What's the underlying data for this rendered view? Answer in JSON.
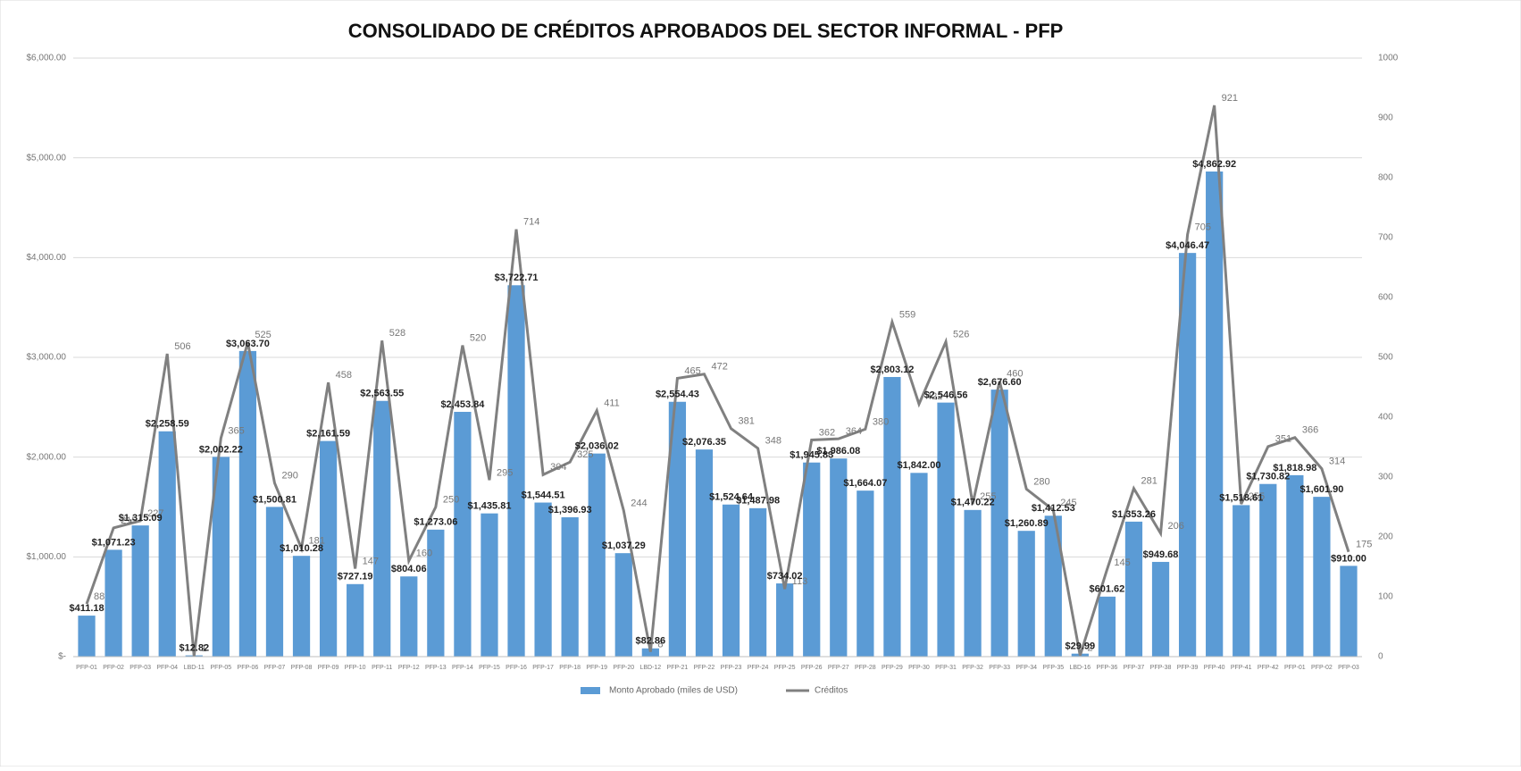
{
  "chart_data": {
    "type": "bar_line",
    "title": "CONSOLIDADO DE CRÉDITOS APROBADOS DEL SECTOR INFORMAL - PFP",
    "categories": [
      "PFP-01",
      "PFP-02",
      "PFP-03",
      "PFP-04",
      "LBD-11",
      "PFP-05",
      "PFP-06",
      "PFP-07",
      "PFP-08",
      "PFP-09",
      "PFP-10",
      "PFP-11",
      "PFP-12",
      "PFP-13",
      "PFP-14",
      "PFP-15",
      "PFP-16",
      "PFP-17",
      "PFP-18",
      "PFP-19",
      "PFP-20",
      "LBD-12",
      "PFP-21",
      "PFP-22",
      "PFP-23",
      "PFP-24",
      "PFP-25",
      "PFP-26",
      "PFP-27",
      "PFP-28",
      "PFP-29",
      "PFP-30",
      "PFP-31",
      "PFP-32",
      "PFP-33",
      "PFP-34",
      "PFP-35",
      "LBD-16",
      "PFP-36",
      "PFP-37",
      "PFP-38",
      "PFP-39",
      "PFP-40",
      "PFP-41",
      "PFP-42",
      "PFP-01",
      "PFP-02",
      "PFP-03"
    ],
    "series": [
      {
        "name": "Monto Aprobado (miles de USD)",
        "color": "#5b9bd5",
        "kind": "bar",
        "values": [
          411.18,
          1071.23,
          1315.09,
          2258.59,
          12.82,
          2002.22,
          3063.7,
          1500.81,
          1010.28,
          2161.59,
          727.19,
          2563.55,
          804.06,
          1273.06,
          2453.84,
          1435.81,
          3722.71,
          1544.51,
          1396.93,
          2036.02,
          1037.29,
          82.86,
          2554.43,
          2076.35,
          1524.64,
          1487.98,
          734.02,
          1945.83,
          1986.08,
          1664.07,
          2803.12,
          1842.0,
          2546.56,
          1470.22,
          2676.6,
          1260.89,
          1412.53,
          29.99,
          601.62,
          1353.26,
          949.68,
          4046.47,
          4862.92,
          1518.61,
          1730.82,
          1818.98,
          1601.9,
          910.0
        ],
        "value_labels": [
          "$411.18",
          "$1,071.23",
          "$1,315.09",
          "$2,258.59",
          "$12.82",
          "$2,002.22",
          "$3,063.70",
          "$1,500.81",
          "$1,010.28",
          "$2,161.59",
          "$727.19",
          "$2,563.55",
          "$804.06",
          "$1,273.06",
          "$2,453.84",
          "$1,435.81",
          "$3,722.71",
          "$1,544.51",
          "$1,396.93",
          "$2,036.02",
          "$1,037.29",
          "$82.86",
          "$2,554.43",
          "$2,076.35",
          "$1,524.64",
          "$1,487.98",
          "$734.02",
          "$1,945.83",
          "$1,986.08",
          "$1,664.07",
          "$2,803.12",
          "$1,842.00",
          "$2,546.56",
          "$1,470.22",
          "$2,676.60",
          "$1,260.89",
          "$1,412.53",
          "$29.99",
          "$601.62",
          "$1,353.26",
          "$949.68",
          "$4,046.47",
          "$4,862.92",
          "$1,518.61",
          "$1,730.82",
          "$1,818.98",
          "$1,601.90",
          "$910.00"
        ]
      },
      {
        "name": "Créditos",
        "color": "#808080",
        "kind": "line",
        "axis": "y2",
        "values": [
          88,
          215,
          227,
          506,
          1,
          365,
          525,
          290,
          181,
          458,
          147,
          528,
          160,
          250,
          520,
          295,
          714,
          304,
          325,
          411,
          244,
          8,
          465,
          472,
          381,
          348,
          113,
          362,
          364,
          380,
          559,
          422,
          526,
          255,
          460,
          280,
          245,
          2,
          145,
          281,
          206,
          705,
          921,
          255,
          351,
          366,
          314,
          175
        ]
      }
    ],
    "ylim": [
      0,
      6000
    ],
    "yticks": [
      {
        "value": 0,
        "label": "$-"
      },
      {
        "value": 1000,
        "label": "$1,000.00"
      },
      {
        "value": 2000,
        "label": "$2,000.00"
      },
      {
        "value": 3000,
        "label": "$3,000.00"
      },
      {
        "value": 4000,
        "label": "$4,000.00"
      },
      {
        "value": 5000,
        "label": "$5,000.00"
      },
      {
        "value": 6000,
        "label": "$6,000.00"
      }
    ],
    "y2lim": [
      0,
      1000
    ],
    "y2ticks": [
      0,
      100,
      200,
      300,
      400,
      500,
      600,
      700,
      800,
      900,
      1000
    ],
    "grid": true,
    "legend": "bottom"
  }
}
